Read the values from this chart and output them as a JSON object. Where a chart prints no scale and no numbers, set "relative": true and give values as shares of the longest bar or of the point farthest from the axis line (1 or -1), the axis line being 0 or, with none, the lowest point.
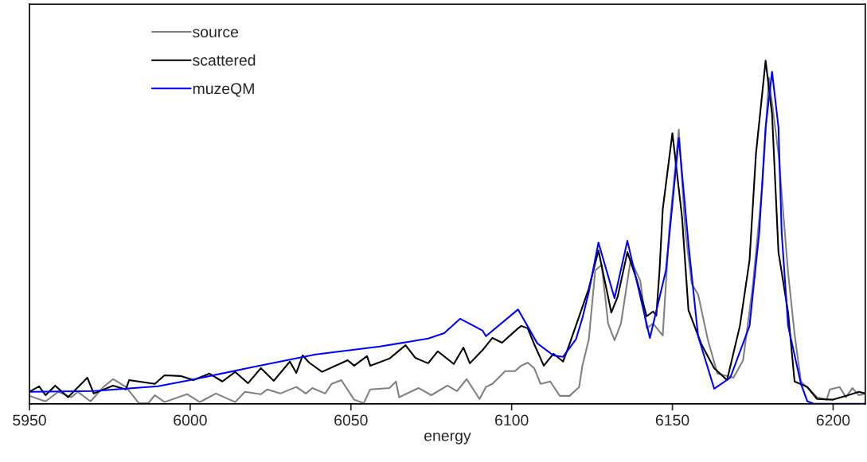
{
  "chart_data": {
    "type": "line",
    "xlabel": "energy",
    "relative": true,
    "xlim": [
      5950,
      6210
    ],
    "xticks": [
      5950,
      6000,
      6050,
      6100,
      6150,
      6200
    ],
    "legend": "top left",
    "grid": false,
    "marker": "none",
    "line_style": "solid",
    "series": [
      {
        "name": "source",
        "color": "#808080",
        "x": [
          5950,
          5955,
          5959,
          5963,
          5965,
          5969,
          5973,
          5976,
          5980,
          5984,
          5987,
          5989,
          5992,
          5999,
          6003,
          6008,
          6014,
          6017,
          6022,
          6024,
          6028,
          6033,
          6036,
          6038,
          6042,
          6044,
          6047,
          6051,
          6054,
          6056,
          6062,
          6064,
          6065,
          6071,
          6075,
          6080,
          6083,
          6086,
          6090,
          6092,
          6094,
          6098,
          6101,
          6103,
          6105,
          6107,
          6109,
          6112,
          6115,
          6118,
          6121,
          6122,
          6124,
          6126,
          6128,
          6130,
          6132,
          6134,
          6137,
          6140,
          6142,
          6144,
          6147,
          6149,
          6152,
          6154,
          6156,
          6158,
          6161,
          6164,
          6169,
          6172,
          6175,
          6178,
          6180,
          6183,
          6186,
          6188,
          6190,
          6195,
          6198,
          6199,
          6202,
          6204,
          6206,
          6208,
          6210
        ],
        "values": [
          0.023,
          0.007,
          0.035,
          0.019,
          0.035,
          0.007,
          0.049,
          0.072,
          0.049,
          0.002,
          0.002,
          0.025,
          0.005,
          0.028,
          0.005,
          0.03,
          0.005,
          0.035,
          0.028,
          0.042,
          0.03,
          0.049,
          0.03,
          0.046,
          0.03,
          0.058,
          0.069,
          0.012,
          0.002,
          0.042,
          0.046,
          0.065,
          0.019,
          0.046,
          0.025,
          0.053,
          0.037,
          0.072,
          0.014,
          0.049,
          0.058,
          0.095,
          0.095,
          0.111,
          0.12,
          0.104,
          0.058,
          0.065,
          0.023,
          0.023,
          0.049,
          0.111,
          0.188,
          0.389,
          0.405,
          0.234,
          0.185,
          0.234,
          0.419,
          0.359,
          0.22,
          0.234,
          0.199,
          0.505,
          0.799,
          0.505,
          0.35,
          0.319,
          0.188,
          0.088,
          0.076,
          0.127,
          0.343,
          0.637,
          0.951,
          0.729,
          0.382,
          0.204,
          0.065,
          0.019,
          0.012,
          0.042,
          0.049,
          0.019,
          0.046,
          0.025,
          0.03
        ]
      },
      {
        "name": "scattered",
        "color": "#000000",
        "x": [
          5950,
          5953,
          5955,
          5958,
          5962,
          5968,
          5970,
          5976,
          5980,
          5981,
          5989,
          5992,
          5997,
          6001,
          6006,
          6010,
          6014,
          6018,
          6022,
          6026,
          6031,
          6033,
          6035,
          6037,
          6041,
          6049,
          6051,
          6055,
          6056,
          6062,
          6067,
          6070,
          6074,
          6077,
          6082,
          6085,
          6087,
          6091,
          6094,
          6097,
          6102,
          6103,
          6105,
          6107,
          6110,
          6113,
          6116,
          6118,
          6124,
          6127,
          6131,
          6133,
          6136,
          6139,
          6142,
          6144,
          6145,
          6146,
          6147,
          6150,
          6153,
          6155,
          6159,
          6163,
          6167,
          6171,
          6174,
          6176,
          6179,
          6181,
          6183,
          6186,
          6188,
          6192,
          6195,
          6200,
          6204,
          6208,
          6210
        ],
        "values": [
          0.035,
          0.051,
          0.025,
          0.053,
          0.019,
          0.076,
          0.03,
          0.053,
          0.042,
          0.069,
          0.058,
          0.083,
          0.081,
          0.069,
          0.088,
          0.065,
          0.093,
          0.06,
          0.104,
          0.067,
          0.123,
          0.09,
          0.141,
          0.12,
          0.093,
          0.127,
          0.111,
          0.139,
          0.111,
          0.132,
          0.171,
          0.134,
          0.118,
          0.153,
          0.116,
          0.164,
          0.118,
          0.157,
          0.192,
          0.178,
          0.22,
          0.227,
          0.22,
          0.174,
          0.111,
          0.146,
          0.123,
          0.174,
          0.336,
          0.447,
          0.266,
          0.313,
          0.442,
          0.359,
          0.255,
          0.269,
          0.257,
          0.389,
          0.567,
          0.789,
          0.544,
          0.273,
          0.174,
          0.104,
          0.069,
          0.227,
          0.419,
          0.729,
          1.0,
          0.845,
          0.442,
          0.266,
          0.065,
          0.049,
          0.014,
          0.012,
          0.023,
          0.035,
          0.03
        ]
      },
      {
        "name": "muzeQM",
        "color": "#0000ff",
        "x": [
          5950,
          5970,
          5990,
          6000,
          6019,
          6039,
          6059,
          6074,
          6079,
          6084,
          6091,
          6092,
          6102,
          6108,
          6113,
          6116,
          6120,
          6122,
          6124,
          6127,
          6132,
          6136,
          6143,
          6148,
          6152,
          6155,
          6158,
          6163,
          6168,
          6174,
          6177,
          6179,
          6181,
          6183,
          6184,
          6186,
          6190,
          6192,
          6194,
          6210
        ],
        "values": [
          0.035,
          0.037,
          0.051,
          0.069,
          0.106,
          0.144,
          0.167,
          0.19,
          0.206,
          0.248,
          0.213,
          0.197,
          0.275,
          0.176,
          0.141,
          0.137,
          0.188,
          0.25,
          0.326,
          0.47,
          0.308,
          0.475,
          0.192,
          0.389,
          0.775,
          0.465,
          0.197,
          0.044,
          0.076,
          0.227,
          0.498,
          0.806,
          0.968,
          0.806,
          0.498,
          0.227,
          0.058,
          0.007,
          0.0,
          0.0
        ]
      }
    ]
  }
}
